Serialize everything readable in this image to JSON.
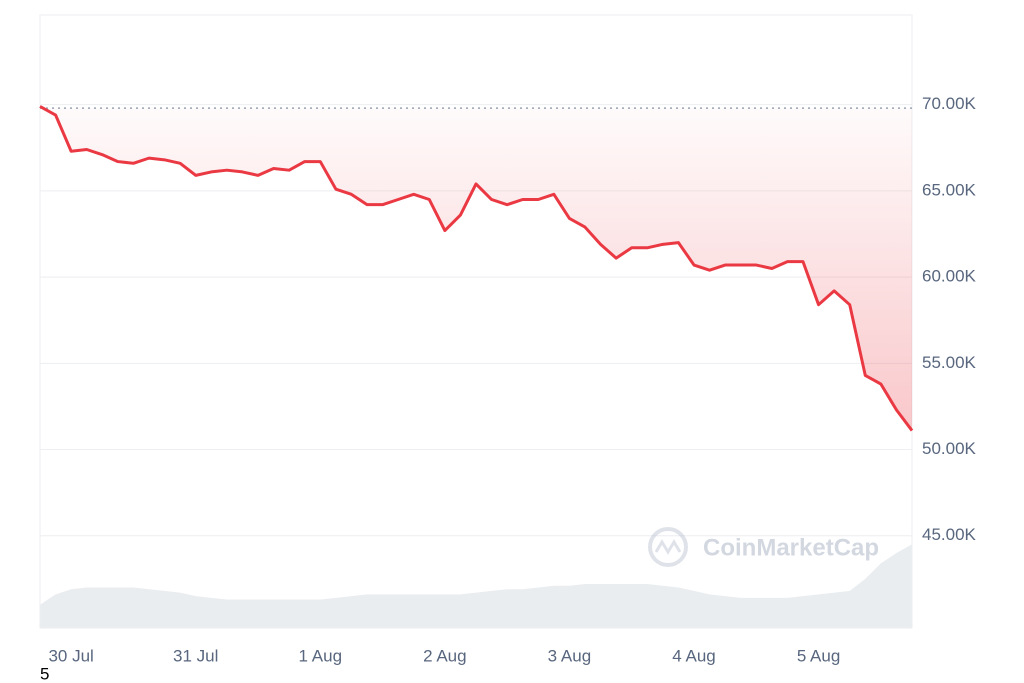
{
  "chart_data": {
    "type": "line",
    "categories": [
      null,
      null,
      "30 Jul",
      null,
      null,
      null,
      null,
      null,
      null,
      null,
      "31 Jul",
      null,
      null,
      null,
      null,
      null,
      null,
      null,
      "1 Aug",
      null,
      null,
      null,
      null,
      null,
      null,
      null,
      "2 Aug",
      null,
      null,
      null,
      null,
      null,
      null,
      null,
      "3 Aug",
      null,
      null,
      null,
      null,
      null,
      null,
      null,
      "4 Aug",
      null,
      null,
      null,
      null,
      null,
      null,
      null,
      "5 Aug",
      null,
      null,
      null,
      null,
      null,
      null
    ],
    "values": [
      69900,
      69400,
      67300,
      67400,
      67100,
      66700,
      66600,
      66900,
      66800,
      66600,
      65900,
      66100,
      66200,
      66100,
      65900,
      66300,
      66200,
      66700,
      66700,
      65100,
      64800,
      64200,
      64200,
      64500,
      64800,
      64500,
      62700,
      63600,
      65400,
      64500,
      64200,
      64500,
      64500,
      64800,
      63400,
      62900,
      61900,
      61100,
      61700,
      61700,
      61900,
      62000,
      60700,
      60400,
      60700,
      60700,
      60700,
      60500,
      60900,
      60900,
      58400,
      59200,
      58400,
      54300,
      53800,
      52300,
      51100
    ],
    "color": "#ea3943",
    "baseline": 69800,
    "volume": {
      "color": "#eaedf0",
      "values": [
        41000,
        41600,
        41900,
        42000,
        42000,
        42000,
        42000,
        41900,
        41800,
        41700,
        41500,
        41400,
        41300,
        41300,
        41300,
        41300,
        41300,
        41300,
        41300,
        41400,
        41500,
        41600,
        41600,
        41600,
        41600,
        41600,
        41600,
        41600,
        41700,
        41800,
        41900,
        41900,
        42000,
        42100,
        42100,
        42200,
        42200,
        42200,
        42200,
        42200,
        42100,
        42000,
        41800,
        41600,
        41500,
        41400,
        41400,
        41400,
        41400,
        41500,
        41600,
        41700,
        41800,
        42500,
        43400,
        44000,
        44500
      ]
    },
    "ylim": [
      39650,
      75200
    ],
    "yticks": [
      {
        "value": 45000,
        "label": "45.00K"
      },
      {
        "value": 50000,
        "label": "50.00K"
      },
      {
        "value": 55000,
        "label": "55.00K"
      },
      {
        "value": 60000,
        "label": "60.00K"
      },
      {
        "value": 65000,
        "label": "65.00K"
      },
      {
        "value": 70000,
        "label": "70.00K"
      }
    ],
    "grid": true,
    "watermark": "CoinMarketCap",
    "annotation": "5"
  }
}
